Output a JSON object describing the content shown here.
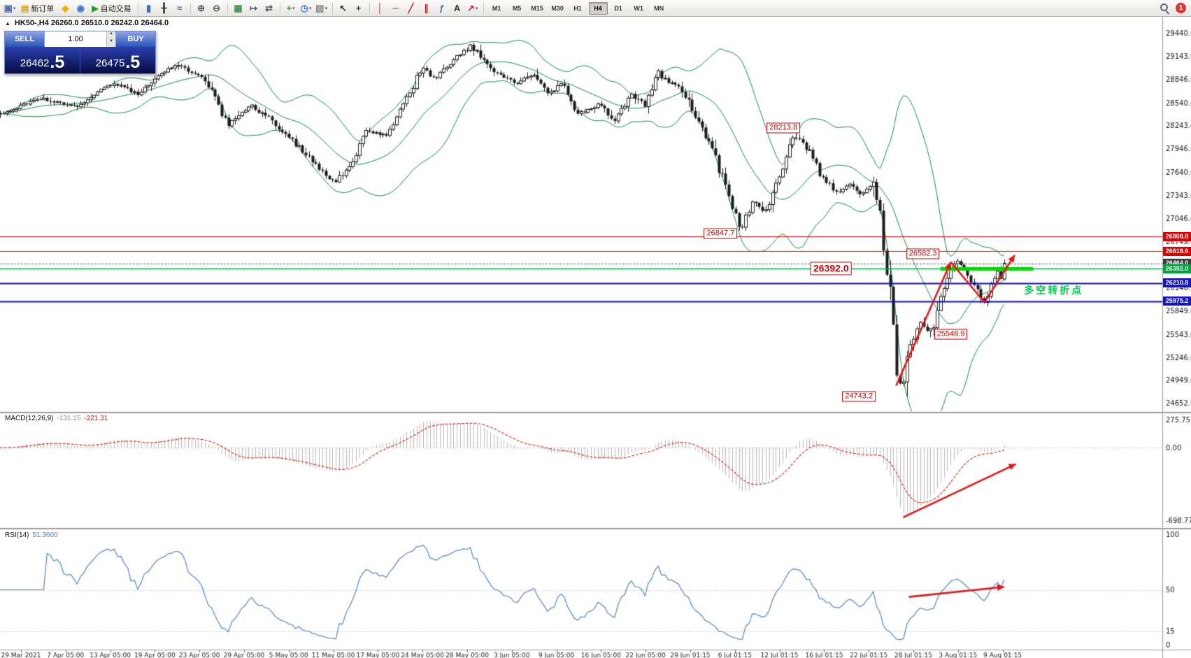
{
  "toolbar": {
    "notification_count": "1",
    "timeframes": [
      "M1",
      "M5",
      "M15",
      "M30",
      "H1",
      "H4",
      "D1",
      "W1",
      "MN"
    ],
    "active_timeframe": "H4",
    "items": [
      {
        "t": "icon",
        "name": "new-chart-icon",
        "g": "▣",
        "c": "#4a6fae",
        "caret": true
      },
      {
        "t": "btn",
        "name": "new-order-button",
        "g": "▤",
        "c": "#d8a010",
        "label": "新订单"
      },
      {
        "t": "icon",
        "name": "metaeditor-icon",
        "g": "◆",
        "c": "#e8b400"
      },
      {
        "t": "icon",
        "name": "market-icon",
        "g": "◉",
        "c": "#3a7ad0"
      },
      {
        "t": "btn",
        "name": "autotrading-button",
        "g": "▶",
        "c": "#1ba11b",
        "label": "自动交易"
      },
      {
        "t": "sep"
      },
      {
        "t": "icon",
        "name": "bar-chart-icon",
        "g": "▮",
        "c": "#4a6fae"
      },
      {
        "t": "icon",
        "name": "candlestick-icon",
        "g": "╂",
        "c": "#333333"
      },
      {
        "t": "icon",
        "name": "line-chart-icon",
        "g": "≈",
        "c": "#4a6fae"
      },
      {
        "t": "sep"
      },
      {
        "t": "icon",
        "name": "zoom-in-icon",
        "g": "⊕",
        "c": "#555566"
      },
      {
        "t": "icon",
        "name": "zoom-out-icon",
        "g": "⊖",
        "c": "#555566"
      },
      {
        "t": "sep"
      },
      {
        "t": "icon",
        "name": "tile-windows-icon",
        "g": "▦",
        "c": "#2f9e44"
      },
      {
        "t": "icon",
        "name": "auto-scroll-icon",
        "g": "↦",
        "c": "#555566"
      },
      {
        "t": "icon",
        "name": "chart-shift-icon",
        "g": "⇄",
        "c": "#555566"
      },
      {
        "t": "sep"
      },
      {
        "t": "icon",
        "name": "indicators-icon",
        "g": "+",
        "c": "#1ba11b",
        "caret": true
      },
      {
        "t": "icon",
        "name": "periods-icon",
        "g": "◷",
        "c": "#3a7ad0",
        "caret": true
      },
      {
        "t": "icon",
        "name": "templates-icon",
        "g": "▧",
        "c": "#888888",
        "caret": true
      },
      {
        "t": "sep"
      },
      {
        "t": "icon",
        "name": "cursor-icon",
        "g": "↖",
        "c": "#333333"
      },
      {
        "t": "icon",
        "name": "crosshair-icon",
        "g": "+",
        "c": "#333333"
      },
      {
        "t": "sep"
      },
      {
        "t": "icon",
        "name": "vertical-line-icon",
        "g": "│",
        "c": "#b03030"
      },
      {
        "t": "icon",
        "name": "horizontal-line-icon",
        "g": "─",
        "c": "#b03030"
      },
      {
        "t": "icon",
        "name": "trendline-icon",
        "g": "╱",
        "c": "#b03030"
      },
      {
        "t": "icon",
        "name": "channel-icon",
        "g": "∥",
        "c": "#b03030"
      },
      {
        "t": "icon",
        "name": "fibonacci-icon",
        "g": "ƒ",
        "c": "#3a7ad0"
      },
      {
        "t": "icon",
        "name": "text-icon",
        "g": "A",
        "c": "#333333"
      },
      {
        "t": "icon",
        "name": "arrows-icon",
        "g": "↗",
        "c": "#b03030",
        "caret": true
      },
      {
        "t": "sep"
      }
    ]
  },
  "chart": {
    "symbol_header": "HK50-,H4  26260.0 26510.0 26242.0 26464.0",
    "trade_panel": {
      "sell_label": "SELL",
      "buy_label": "BUY",
      "volume": "1.00",
      "sell_price_main": "26462",
      "sell_price_big": ".5",
      "buy_price_main": "26475",
      "buy_price_big": ".5",
      "spinner_up": "▲",
      "spinner_down": "▼"
    }
  },
  "chart_data": {
    "type": "candlestick",
    "symbol": "HK50-",
    "timeframe": "H4",
    "bars": 300,
    "last_bar_frac": 0.864,
    "last_close": 26464.0,
    "ohlc_current": {
      "open": 26260.0,
      "high": 26510.0,
      "low": 26242.0,
      "close": 26464.0
    },
    "price_axis": {
      "labels": [
        "29440.0",
        "29143.0",
        "28846.0",
        "28540.0",
        "28243.0",
        "27946.0",
        "27640.0",
        "27343.0",
        "27046.0",
        "26749.0",
        "26452.0",
        "26146.0",
        "25849.0",
        "25543.0",
        "25246.0",
        "24949.0",
        "24652.0"
      ],
      "badges": [
        {
          "text": "26808.8",
          "price": 26808.8,
          "color": "#e00000"
        },
        {
          "text": "26618.6",
          "price": 26618.6,
          "color": "#e00000"
        },
        {
          "text": "26464.0",
          "price": 26464.0,
          "color": "#3d3d3d"
        },
        {
          "text": "26392.0",
          "price": 26392.0,
          "color": "#00a63c"
        },
        {
          "text": "26210.8",
          "price": 26210.8,
          "color": "#1616c8"
        },
        {
          "text": "25975.2",
          "price": 25975.2,
          "color": "#1616c8"
        }
      ]
    },
    "bollinger": {
      "period": 20,
      "deviation": 2,
      "color": "#0c8f42"
    },
    "price_path": [
      [
        0,
        28400
      ],
      [
        0.033,
        28600
      ],
      [
        0.065,
        28500
      ],
      [
        0.098,
        28800
      ],
      [
        0.118,
        28650
      ],
      [
        0.15,
        29050
      ],
      [
        0.176,
        28850
      ],
      [
        0.196,
        28250
      ],
      [
        0.216,
        28500
      ],
      [
        0.235,
        28300
      ],
      [
        0.261,
        27900
      ],
      [
        0.288,
        27500
      ],
      [
        0.307,
        27850
      ],
      [
        0.314,
        28200
      ],
      [
        0.333,
        28100
      ],
      [
        0.353,
        28700
      ],
      [
        0.363,
        29000
      ],
      [
        0.373,
        28850
      ],
      [
        0.386,
        29050
      ],
      [
        0.405,
        29280
      ],
      [
        0.425,
        28950
      ],
      [
        0.444,
        28780
      ],
      [
        0.458,
        28920
      ],
      [
        0.471,
        28650
      ],
      [
        0.484,
        28800
      ],
      [
        0.497,
        28400
      ],
      [
        0.516,
        28520
      ],
      [
        0.529,
        28300
      ],
      [
        0.542,
        28650
      ],
      [
        0.556,
        28520
      ],
      [
        0.565,
        28950
      ],
      [
        0.575,
        28800
      ],
      [
        0.588,
        28700
      ],
      [
        0.601,
        28300
      ],
      [
        0.614,
        27900
      ],
      [
        0.627,
        27300
      ],
      [
        0.637,
        26900
      ],
      [
        0.647,
        27250
      ],
      [
        0.66,
        27120
      ],
      [
        0.673,
        27700
      ],
      [
        0.683,
        28130
      ],
      [
        0.696,
        27900
      ],
      [
        0.706,
        27600
      ],
      [
        0.719,
        27380
      ],
      [
        0.732,
        27480
      ],
      [
        0.742,
        27320
      ],
      [
        0.752,
        27580
      ],
      [
        0.758,
        27050
      ],
      [
        0.765,
        26100
      ],
      [
        0.771,
        25150
      ],
      [
        0.775,
        24820
      ],
      [
        0.781,
        25350
      ],
      [
        0.791,
        25680
      ],
      [
        0.801,
        25560
      ],
      [
        0.81,
        26080
      ],
      [
        0.817,
        26320
      ],
      [
        0.822,
        26520
      ],
      [
        0.83,
        26340
      ],
      [
        0.84,
        26120
      ],
      [
        0.846,
        25960
      ],
      [
        0.853,
        26220
      ],
      [
        0.859,
        26400
      ],
      [
        0.864,
        26464
      ]
    ],
    "horizontal_lines": [
      {
        "price": 26808.8,
        "color": "#e80000",
        "width": 1.2
      },
      {
        "price": 26618.6,
        "color": "#e80000",
        "width": 1.2
      },
      {
        "price": 26464.0,
        "color": "#505050",
        "width": 1,
        "dash": [
          3,
          2
        ]
      },
      {
        "price": 26392.0,
        "color": "#00b050",
        "width": 1.4
      },
      {
        "price": 26210.8,
        "color": "#0a0ae0",
        "width": 1.8
      },
      {
        "price": 25975.2,
        "color": "#0a0ae0",
        "width": 1.8
      }
    ],
    "price_labels_on_chart": [
      {
        "text": "28213.8",
        "f": 0.674,
        "price": 28213.8,
        "large": false
      },
      {
        "text": "26847.7",
        "f": 0.62,
        "price": 26847.7,
        "large": false
      },
      {
        "text": "26582.3",
        "f": 0.794,
        "price": 26582.3,
        "large": false
      },
      {
        "text": "26392.0",
        "f": 0.715,
        "price": 26392.0,
        "large": true
      },
      {
        "text": "25548.9",
        "f": 0.818,
        "price": 25548.9,
        "large": false
      },
      {
        "text": "24743.2",
        "f": 0.739,
        "price": 24743.2,
        "large": false
      }
    ],
    "annotations": {
      "thick_segment": {
        "f1": 0.809,
        "f2": 0.889,
        "price": 26392.0,
        "color": "#00dd00",
        "width": 5
      },
      "arrows_main": [
        {
          "f1": 0.771,
          "p1": 24880,
          "f2": 0.818,
          "p2": 26480,
          "head": true
        },
        {
          "f1": 0.818,
          "p1": 26480,
          "f2": 0.847,
          "p2": 25960,
          "head": false
        },
        {
          "f1": 0.847,
          "p1": 25960,
          "f2": 0.873,
          "p2": 26570,
          "head": true
        }
      ],
      "macd_arrow": {
        "f1": 0.777,
        "q1": 0.93,
        "f2": 0.874,
        "q2": 0.45
      },
      "rsi_arrow": {
        "f1": 0.782,
        "r1": 44,
        "f2": 0.864,
        "r2": 52.5
      },
      "note": {
        "text": "多空转折点",
        "f": 0.881,
        "price": 26120,
        "color": "#00d14a"
      }
    },
    "macd": {
      "label": "MACD(12,26,9)",
      "v1": "-131.15",
      "v2": "-221.31",
      "axis_top": "275.75",
      "axis_zero": "0.00",
      "axis_bottom": "-698.77"
    },
    "rsi": {
      "label": "RSI(14)",
      "value": "51.3600",
      "period": 14,
      "axis": [
        "100",
        "50",
        "15",
        "0"
      ],
      "levels": [
        50,
        15
      ]
    },
    "time_axis": [
      "29 Mar 2021",
      "7 Apr 05:00",
      "13 Apr 05:00",
      "19 Apr 05:00",
      "23 Apr 05:00",
      "29 Apr 05:00",
      "5 May 05:00",
      "11 May 05:00",
      "17 May 05:00",
      "24 May 05:00",
      "28 May 05:00",
      "3 Jun 05:00",
      "9 Jun 05:00",
      "16 Jun 05:00",
      "22 Jun 05:00",
      "29 Jun 01:15",
      "6 Jul 01:15",
      "12 Jul 01:15",
      "16 Jul 01:15",
      "22 Jul 01:15",
      "28 Jul 01:15",
      "3 Aug 01:15",
      "9 Aug 01:15"
    ]
  }
}
